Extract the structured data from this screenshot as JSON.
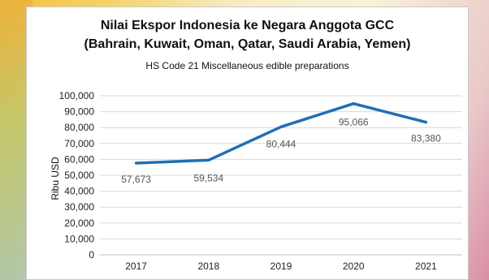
{
  "chart_data": {
    "type": "line",
    "title": "Nilai Ekspor Indonesia ke Negara Anggota GCC",
    "title_line2": "(Bahrain, Kuwait, Oman, Qatar, Saudi Arabia, Yemen)",
    "subtitle": "HS Code 21 Miscellaneous edible preparations",
    "xlabel": "",
    "ylabel": "Ribu USD",
    "categories": [
      "2017",
      "2018",
      "2019",
      "2020",
      "2021"
    ],
    "values": [
      57673,
      59534,
      80444,
      95066,
      83380
    ],
    "data_labels": [
      "57,673",
      "59,534",
      "80,444",
      "95,066",
      "83,380"
    ],
    "ylim": [
      0,
      100000
    ],
    "yticks": [
      0,
      10000,
      20000,
      30000,
      40000,
      50000,
      60000,
      70000,
      80000,
      90000,
      100000
    ],
    "ytick_labels": [
      "0",
      "10,000",
      "20,000",
      "30,000",
      "40,000",
      "50,000",
      "60,000",
      "70,000",
      "80,000",
      "90,000",
      "100,000"
    ],
    "grid": true,
    "line_color": "#1f6fb5"
  }
}
